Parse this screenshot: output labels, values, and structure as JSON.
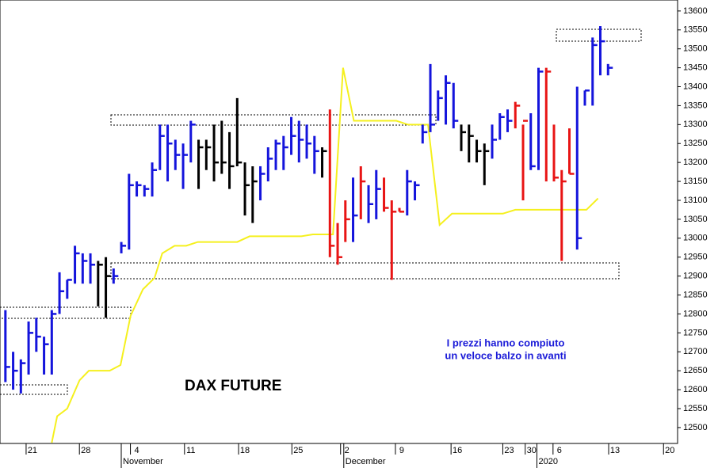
{
  "chart_data": {
    "type": "ohlc",
    "title": "DAX FUTURE",
    "annotation": [
      "I prezzi hanno compiuto",
      "un veloce balzo in avanti"
    ],
    "x": [
      0,
      1,
      2,
      3,
      4,
      5,
      6,
      7,
      8,
      9,
      10,
      11,
      12,
      13,
      14,
      15,
      16,
      17,
      18,
      19,
      20,
      21,
      22,
      23,
      24,
      25,
      26,
      27,
      28,
      29,
      30,
      31,
      32,
      33,
      34,
      35,
      36,
      37,
      38,
      39,
      40,
      41,
      42,
      43,
      44,
      45,
      46,
      47,
      48,
      49,
      50,
      51,
      52,
      53,
      54,
      55,
      56,
      57,
      58,
      59,
      60,
      61,
      62,
      63,
      64,
      65,
      66,
      67,
      68,
      69,
      70,
      71,
      72,
      73,
      74,
      75,
      76,
      77,
      78
    ],
    "high": [
      12810,
      12700,
      12680,
      12780,
      12790,
      12740,
      12810,
      12910,
      12890,
      12980,
      12960,
      12960,
      12940,
      12950,
      12920,
      12990,
      13170,
      13150,
      13140,
      13200,
      13300,
      13300,
      13260,
      13250,
      13310,
      13260,
      13260,
      13300,
      13310,
      13280,
      13370,
      13200,
      13190,
      13190,
      13240,
      13260,
      13270,
      13320,
      13310,
      13300,
      13270,
      13240,
      13340,
      13040,
      13100,
      13160,
      13190,
      13140,
      13180,
      13160,
      13100,
      13080,
      13180,
      13150,
      13300,
      13460,
      13390,
      13430,
      13410,
      13300,
      13300,
      13260,
      13250,
      13300,
      13330,
      13340,
      13360,
      13300,
      13330,
      13450,
      13450,
      13300,
      13180,
      13290,
      13400,
      13390,
      13530,
      13560,
      13460
    ],
    "low": [
      12620,
      12600,
      12590,
      12640,
      12700,
      12640,
      12640,
      12800,
      12840,
      12880,
      12880,
      12880,
      12820,
      12790,
      12880,
      12960,
      12970,
      13110,
      13110,
      13110,
      13180,
      13150,
      13180,
      13130,
      13200,
      13130,
      13180,
      13150,
      13170,
      13130,
      13190,
      13060,
      13040,
      13100,
      13150,
      13180,
      13180,
      13220,
      13200,
      13210,
      13170,
      13160,
      12950,
      12930,
      12990,
      12990,
      13050,
      13040,
      13050,
      13070,
      12890,
      13070,
      13060,
      13100,
      13250,
      13280,
      13310,
      13300,
      13290,
      13230,
      13200,
      13200,
      13140,
      13210,
      13260,
      13280,
      13290,
      13100,
      13180,
      13180,
      13150,
      13150,
      12940,
      13170,
      12970,
      13350,
      13350,
      13430,
      13430
    ],
    "close": [
      12660,
      12650,
      12670,
      12750,
      12740,
      12720,
      12800,
      12860,
      12890,
      12960,
      12940,
      12930,
      12930,
      12900,
      12900,
      12980,
      13140,
      13140,
      13130,
      13180,
      13270,
      13250,
      13220,
      13220,
      13300,
      13240,
      13240,
      13200,
      13200,
      13190,
      13200,
      13140,
      13150,
      13170,
      13210,
      13250,
      13240,
      13270,
      13260,
      13250,
      13230,
      13230,
      12980,
      12950,
      13050,
      13060,
      13150,
      13090,
      13130,
      13080,
      13070,
      13070,
      13150,
      13140,
      13280,
      13300,
      13370,
      13410,
      13310,
      13280,
      13270,
      13230,
      13230,
      13260,
      13320,
      13310,
      13350,
      13310,
      13190,
      13440,
      13440,
      13160,
      13150,
      13170,
      13000,
      13390,
      13510,
      13520,
      13450
    ],
    "colors": [
      "#1414dc",
      "#1414dc",
      "#1414dc",
      "#1414dc",
      "#1414dc",
      "#1414dc",
      "#1414dc",
      "#1414dc",
      "#1414dc",
      "#1414dc",
      "#1414dc",
      "#1414dc",
      "#000000",
      "#000000",
      "#1414dc",
      "#1414dc",
      "#1414dc",
      "#1414dc",
      "#1414dc",
      "#1414dc",
      "#1414dc",
      "#1414dc",
      "#1414dc",
      "#1414dc",
      "#1414dc",
      "#000000",
      "#000000",
      "#000000",
      "#000000",
      "#000000",
      "#000000",
      "#000000",
      "#000000",
      "#1414dc",
      "#1414dc",
      "#1414dc",
      "#1414dc",
      "#1414dc",
      "#1414dc",
      "#1414dc",
      "#1414dc",
      "#000000",
      "#e81414",
      "#e81414",
      "#e81414",
      "#1414dc",
      "#e81414",
      "#1414dc",
      "#1414dc",
      "#e81414",
      "#e81414",
      "#e81414",
      "#1414dc",
      "#1414dc",
      "#1414dc",
      "#1414dc",
      "#1414dc",
      "#1414dc",
      "#1414dc",
      "#000000",
      "#000000",
      "#000000",
      "#000000",
      "#1414dc",
      "#1414dc",
      "#1414dc",
      "#e81414",
      "#e81414",
      "#1414dc",
      "#1414dc",
      "#e81414",
      "#e81414",
      "#e81414",
      "#e81414",
      "#1414dc",
      "#1414dc",
      "#1414dc",
      "#1414dc",
      "#1414dc"
    ],
    "line": {
      "color": "#f5f01e",
      "x": [
        6,
        6.7,
        8,
        9.6,
        10.8,
        13.5,
        14.9,
        16.2,
        17.8,
        19.3,
        20.3,
        21.9,
        23.4,
        24.9,
        30,
        31.6,
        38.3,
        39.8,
        42.4,
        43.7,
        45.1,
        50.6,
        52.1,
        54.7,
        56.2,
        57.8,
        64.4,
        66,
        75.2,
        76.7
      ],
      "values": [
        12460,
        12530,
        12550,
        12625,
        12650,
        12650,
        12665,
        12795,
        12865,
        12895,
        12960,
        12980,
        12980,
        12990,
        12990,
        13005,
        13005,
        13010,
        13010,
        13450,
        13310,
        13310,
        13300,
        13300,
        13035,
        13065,
        13065,
        13075,
        13075,
        13105
      ]
    },
    "ylim": [
      12458,
      13629
    ],
    "yticks": [
      12500,
      12550,
      12600,
      12650,
      12700,
      12750,
      12800,
      12850,
      12900,
      12950,
      13000,
      13050,
      13100,
      13150,
      13200,
      13250,
      13300,
      13350,
      13400,
      13450,
      13500,
      13550,
      13600
    ],
    "xlim": [
      -0.7,
      87
    ],
    "xticks": [
      {
        "value": 3.5,
        "label": "21"
      },
      {
        "value": 10.4,
        "label": "28"
      },
      {
        "value": 17,
        "label": "4"
      },
      {
        "value": 24,
        "label": "11"
      },
      {
        "value": 31,
        "label": "18"
      },
      {
        "value": 37.9,
        "label": "25"
      },
      {
        "value": 44.2,
        "label": "2"
      },
      {
        "value": 51.3,
        "label": "9"
      },
      {
        "value": 58.5,
        "label": "16"
      },
      {
        "value": 65.2,
        "label": "23"
      },
      {
        "value": 68.1,
        "label": "30"
      },
      {
        "value": 71.7,
        "label": "6"
      },
      {
        "value": 78.9,
        "label": "13"
      },
      {
        "value": 86,
        "label": "20"
      }
    ],
    "month_ticks": [
      {
        "value": 15.2,
        "label": "November"
      },
      {
        "value": 44,
        "label": "December"
      },
      {
        "value": 69,
        "label": "2020"
      }
    ]
  }
}
